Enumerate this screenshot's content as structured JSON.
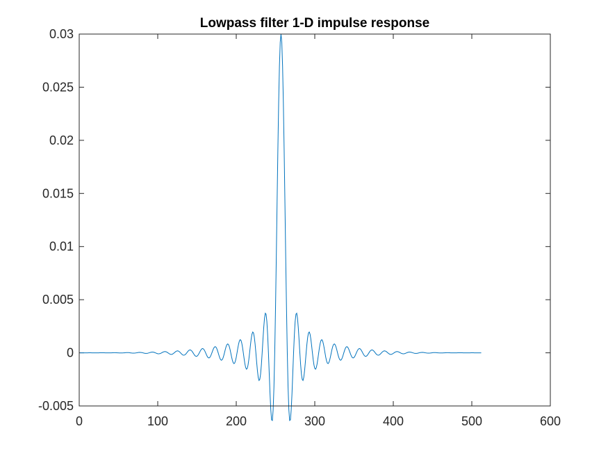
{
  "chart_data": {
    "type": "line",
    "title": "Lowpass filter 1-D impulse response",
    "xlabel": "",
    "ylabel": "",
    "xlim": [
      0,
      600
    ],
    "ylim": [
      -0.005,
      0.03
    ],
    "x_ticks": [
      0,
      100,
      200,
      300,
      400,
      500,
      600
    ],
    "x_tick_labels": [
      "0",
      "100",
      "200",
      "300",
      "400",
      "500",
      "600"
    ],
    "y_ticks": [
      -0.005,
      0,
      0.005,
      0.01,
      0.015,
      0.02,
      0.025,
      0.03
    ],
    "y_tick_labels": [
      "-0.005",
      "0",
      "0.005",
      "0.01",
      "0.015",
      "0.02",
      "0.025",
      "0.03"
    ],
    "grid": false,
    "line_color": "#0072BD",
    "series": [
      {
        "x_start": 1,
        "x_end": 512,
        "peak_x": 257,
        "peak_value": 0.03,
        "first_minimum_value": -0.0041,
        "first_sidelobe_value": 0.002,
        "points": [
          [
            1,
            0.0
          ],
          [
            20,
            0.0
          ],
          [
            40,
            0.0
          ],
          [
            60,
            0.0
          ],
          [
            80,
            0.0
          ],
          [
            100,
            0.0
          ],
          [
            120,
            0.0
          ],
          [
            140,
            0.0
          ],
          [
            160,
            0.0
          ],
          [
            180,
            0.0
          ],
          [
            190,
            0.0
          ],
          [
            200,
            0.0
          ],
          [
            210,
            0.0004
          ],
          [
            220,
            0.0006
          ],
          [
            228,
            0.0008
          ],
          [
            236,
            0.0013
          ],
          [
            241,
            0.002
          ],
          [
            249,
            -0.0041
          ],
          [
            257,
            0.03
          ],
          [
            265,
            -0.0041
          ],
          [
            273,
            0.002
          ],
          [
            278,
            0.0013
          ],
          [
            286,
            0.0008
          ],
          [
            294,
            0.0006
          ],
          [
            304,
            0.0004
          ],
          [
            314,
            0.0
          ],
          [
            330,
            0.0
          ],
          [
            350,
            0.0
          ],
          [
            370,
            0.0
          ],
          [
            400,
            0.0
          ],
          [
            430,
            0.0
          ],
          [
            460,
            0.0
          ],
          [
            490,
            0.0
          ],
          [
            512,
            0.0
          ]
        ]
      }
    ]
  }
}
